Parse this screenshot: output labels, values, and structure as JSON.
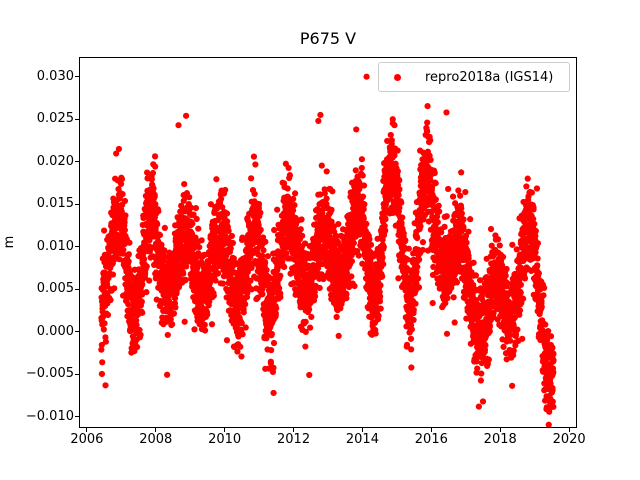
{
  "figure": {
    "background": "#ffffff",
    "spine_color": "#000000",
    "tick_color": "#000000",
    "text_color": "#000000"
  },
  "chart_data": {
    "type": "scatter",
    "title": "P675 V",
    "xlabel": "",
    "ylabel": "m",
    "grid": false,
    "xlim": [
      2005.8,
      2020.2
    ],
    "ylim": [
      -0.0112,
      0.0322
    ],
    "xticks": [
      {
        "v": 2006,
        "label": "2006"
      },
      {
        "v": 2008,
        "label": "2008"
      },
      {
        "v": 2010,
        "label": "2010"
      },
      {
        "v": 2012,
        "label": "2012"
      },
      {
        "v": 2014,
        "label": "2014"
      },
      {
        "v": 2016,
        "label": "2016"
      },
      {
        "v": 2018,
        "label": "2018"
      },
      {
        "v": 2020,
        "label": "2020"
      }
    ],
    "yticks": [
      {
        "v": 0.03,
        "label": "0.030"
      },
      {
        "v": 0.025,
        "label": "0.025"
      },
      {
        "v": 0.02,
        "label": "0.020"
      },
      {
        "v": 0.015,
        "label": "0.015"
      },
      {
        "v": 0.01,
        "label": "0.010"
      },
      {
        "v": 0.005,
        "label": "0.005"
      },
      {
        "v": 0.0,
        "label": "0.000"
      },
      {
        "v": -0.005,
        "label": "−0.005"
      },
      {
        "v": -0.01,
        "label": "−0.010"
      }
    ],
    "legend": {
      "location": "upper right",
      "border_color": "#cccccc",
      "entries": [
        {
          "label": "repro2018a (IGS14)",
          "marker": "circle",
          "color": "#ff0000"
        }
      ]
    },
    "marker": {
      "shape": "circle",
      "color": "#ff0000",
      "radius_px": 3.1
    },
    "series": [
      {
        "name": "repro2018a (IGS14)",
        "color": "#ff0000",
        "description": "Daily GPS vertical position residuals (m) with annual seasonal signal; band near 0.008 m for 2006-2016, elevated 2014-2016, drops to ~0.002 m in 2017, recovers 2018, drops below 0 at end of 2019.",
        "t_start": 2006.42,
        "t_end": 2019.55,
        "samples_per_year": 365,
        "n_points_approx": 4800,
        "noise_sigma": 0.0026,
        "seasonal_peak_phase": 0.87,
        "seed": 20180675,
        "base_level_keypoints": [
          [
            2006.42,
            0.0078
          ],
          [
            2008.0,
            0.0082
          ],
          [
            2009.0,
            0.008
          ],
          [
            2010.0,
            0.0078
          ],
          [
            2011.0,
            0.0075
          ],
          [
            2012.0,
            0.008
          ],
          [
            2013.0,
            0.009
          ],
          [
            2014.0,
            0.0105
          ],
          [
            2014.8,
            0.0118
          ],
          [
            2015.5,
            0.0115
          ],
          [
            2016.3,
            0.0108
          ],
          [
            2016.8,
            0.0085
          ],
          [
            2017.2,
            0.004
          ],
          [
            2017.6,
            0.0022
          ],
          [
            2018.0,
            0.0032
          ],
          [
            2018.5,
            0.0065
          ],
          [
            2018.9,
            0.0078
          ],
          [
            2019.15,
            0.0055
          ],
          [
            2019.35,
            0.001
          ],
          [
            2019.55,
            -0.0025
          ]
        ],
        "seasonal_amp_keypoints": [
          [
            2006.42,
            0.0046
          ],
          [
            2008.0,
            0.0048
          ],
          [
            2009.0,
            0.0042
          ],
          [
            2010.0,
            0.004
          ],
          [
            2011.0,
            0.0048
          ],
          [
            2012.0,
            0.0046
          ],
          [
            2013.0,
            0.0048
          ],
          [
            2014.0,
            0.0052
          ],
          [
            2015.0,
            0.0055
          ],
          [
            2016.0,
            0.0054
          ],
          [
            2017.0,
            0.004
          ],
          [
            2018.0,
            0.0042
          ],
          [
            2019.0,
            0.0042
          ],
          [
            2019.55,
            0.0038
          ]
        ],
        "outliers": [
          [
            2014.12,
            0.03
          ],
          [
            2012.78,
            0.0255
          ],
          [
            2012.72,
            0.0248
          ],
          [
            2008.88,
            0.0254
          ],
          [
            2008.66,
            0.0243
          ],
          [
            2016.44,
            0.0258
          ],
          [
            2014.88,
            0.025
          ],
          [
            2014.93,
            0.0243
          ],
          [
            2015.88,
            0.0246
          ],
          [
            2013.82,
            0.0238
          ],
          [
            2006.93,
            0.0215
          ],
          [
            2010.85,
            0.0206
          ],
          [
            2017.38,
            -0.0088
          ],
          [
            2017.5,
            -0.0082
          ],
          [
            2019.44,
            -0.009
          ],
          [
            2019.49,
            -0.0083
          ],
          [
            2011.42,
            -0.0072
          ],
          [
            2006.54,
            -0.0063
          ]
        ]
      }
    ]
  }
}
